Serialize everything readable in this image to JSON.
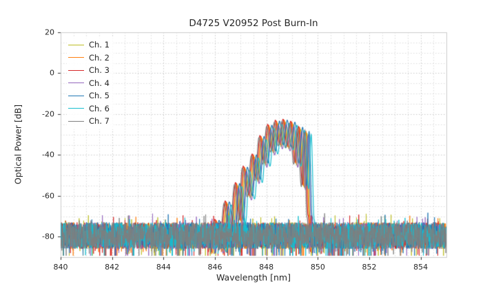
{
  "chart_data": {
    "type": "line",
    "title": "D4725 V20952 Post Burn-In",
    "xlabel": "Wavelength [nm]",
    "ylabel": "Optical Power [dB]",
    "xlim": [
      840,
      855
    ],
    "ylim": [
      -90,
      20
    ],
    "xticks": [
      840,
      842,
      844,
      846,
      848,
      850,
      852,
      854
    ],
    "yticks": [
      20,
      0,
      -20,
      -40,
      -60,
      -80
    ],
    "x_minor_step": 0.5,
    "y_minor_step": 5,
    "grid": "both, dotted",
    "legend_position": "upper left",
    "noise_floor": {
      "mean": -79.5,
      "spread": 6.5,
      "top": -70,
      "bottom": -88
    },
    "signal_envelope": [
      [
        845.95,
        -88
      ],
      [
        846.1,
        -72
      ],
      [
        846.3,
        -86
      ],
      [
        846.5,
        -63
      ],
      [
        846.7,
        -82
      ],
      [
        846.9,
        -54
      ],
      [
        847.05,
        -72
      ],
      [
        847.2,
        -46
      ],
      [
        847.4,
        -60
      ],
      [
        847.55,
        -40
      ],
      [
        847.7,
        -52
      ],
      [
        847.85,
        -31
      ],
      [
        848.0,
        -44
      ],
      [
        848.15,
        -25.5
      ],
      [
        848.3,
        -38
      ],
      [
        848.45,
        -23.5
      ],
      [
        848.6,
        -35
      ],
      [
        848.75,
        -23.0
      ],
      [
        848.9,
        -36
      ],
      [
        849.05,
        -24.0
      ],
      [
        849.2,
        -44
      ],
      [
        849.35,
        -26.5
      ],
      [
        849.5,
        -55
      ],
      [
        849.6,
        -28.5
      ],
      [
        849.72,
        -70
      ],
      [
        849.82,
        -88
      ]
    ],
    "series": [
      {
        "name": "Ch. 1",
        "color": "#bcbd22",
        "dx": -0.02,
        "dy": -1.0
      },
      {
        "name": "Ch. 2",
        "color": "#ff7f0e",
        "dx": -0.06,
        "dy": 0.0
      },
      {
        "name": "Ch. 3",
        "color": "#d62728",
        "dx": -0.1,
        "dy": 0.5
      },
      {
        "name": "Ch. 4",
        "color": "#9467bd",
        "dx": 0.02,
        "dy": -2.0
      },
      {
        "name": "Ch. 5",
        "color": "#1f77b4",
        "dx": 0.06,
        "dy": 0.0
      },
      {
        "name": "Ch. 6",
        "color": "#17becf",
        "dx": 0.14,
        "dy": -1.5
      },
      {
        "name": "Ch. 7",
        "color": "#7f7f7f",
        "dx": -0.14,
        "dy": -0.5
      }
    ]
  }
}
